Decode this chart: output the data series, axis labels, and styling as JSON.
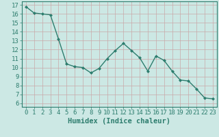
{
  "x": [
    0,
    1,
    2,
    3,
    4,
    5,
    6,
    7,
    8,
    9,
    10,
    11,
    12,
    13,
    14,
    15,
    16,
    17,
    18,
    19,
    20,
    21,
    22,
    23
  ],
  "y": [
    16.8,
    16.1,
    16.0,
    15.9,
    13.2,
    10.4,
    10.1,
    10.0,
    9.4,
    9.9,
    11.0,
    11.9,
    12.7,
    11.9,
    11.1,
    9.6,
    11.3,
    10.8,
    9.6,
    8.6,
    8.5,
    7.6,
    6.6,
    6.5
  ],
  "line_color": "#2d7d6e",
  "marker": "D",
  "marker_size": 2.0,
  "bg_color": "#cce8e4",
  "grid_color": "#c8a8a8",
  "xlabel": "Humidex (Indice chaleur)",
  "ylabel_ticks": [
    6,
    7,
    8,
    9,
    10,
    11,
    12,
    13,
    14,
    15,
    16,
    17
  ],
  "ylim": [
    5.6,
    17.4
  ],
  "xlim": [
    -0.5,
    23.5
  ],
  "tick_label_color": "#2d7d6e",
  "xlabel_color": "#2d7d6e",
  "xlabel_fontsize": 7.5,
  "tick_fontsize": 6.5,
  "linewidth": 1.0
}
